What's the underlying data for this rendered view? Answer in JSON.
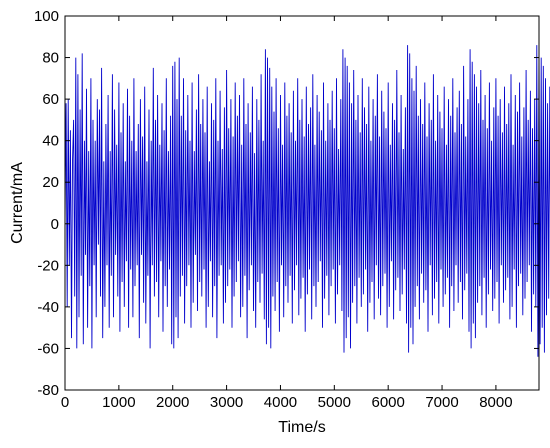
{
  "chart_data": {
    "type": "line",
    "title": "",
    "xlabel": "Time/s",
    "ylabel": "Current/mA",
    "xlim": [
      0,
      8800
    ],
    "ylim": [
      -80,
      100
    ],
    "x_ticks": [
      0,
      1000,
      2000,
      3000,
      4000,
      5000,
      6000,
      7000,
      8000
    ],
    "y_ticks": [
      -80,
      -60,
      -40,
      -20,
      0,
      20,
      40,
      60,
      80,
      100
    ],
    "grid": false,
    "legend": "none",
    "series": [
      {
        "color": "#0000cc",
        "sampling_note": "dense alternating charge/discharge pulse profile; values below are representative samples read at 20 s resolution",
        "x_step": 20,
        "x_start": 0,
        "values": [
          0,
          58,
          -40,
          60,
          -20,
          45,
          -55,
          30,
          50,
          -35,
          80,
          -60,
          72,
          -45,
          55,
          -25,
          82,
          -58,
          40,
          -15,
          65,
          -50,
          35,
          -30,
          70,
          -60,
          50,
          -20,
          40,
          -45,
          60,
          -10,
          55,
          -35,
          75,
          -55,
          30,
          -40,
          48,
          -20,
          62,
          -50,
          35,
          -25,
          72,
          -45,
          55,
          -15,
          38,
          -35,
          68,
          -52,
          44,
          -28,
          58,
          -40,
          30,
          -18,
          65,
          -50,
          52,
          -22,
          40,
          -45,
          70,
          -30,
          35,
          -20,
          48,
          -55,
          60,
          -15,
          42,
          -38,
          66,
          -48,
          30,
          -25,
          55,
          -60,
          40,
          -20,
          75,
          -35,
          50,
          -28,
          62,
          -45,
          38,
          -18,
          58,
          -52,
          45,
          -30,
          70,
          -40,
          35,
          -22,
          52,
          -58,
          76,
          -60,
          78,
          -45,
          60,
          -55,
          80,
          -35,
          52,
          -25,
          70,
          -48,
          45,
          -30,
          62,
          -20,
          40,
          -50,
          68,
          -38,
          35,
          -15,
          55,
          -42,
          72,
          -28,
          48,
          -35,
          60,
          -22,
          44,
          -50,
          66,
          -40,
          30,
          -18,
          58,
          -45,
          50,
          -30,
          70,
          -55,
          40,
          -25,
          64,
          -20,
          36,
          -48,
          56,
          -38,
          74,
          -30,
          46,
          -22,
          60,
          -50,
          42,
          -35,
          68,
          -28,
          52,
          -18,
          62,
          -45,
          38,
          -40,
          70,
          -25,
          48,
          -55,
          58,
          -32,
          44,
          -20,
          66,
          -42,
          34,
          -50,
          60,
          -28,
          50,
          -38,
          72,
          -24,
          40,
          -46,
          84,
          -58,
          80,
          -50,
          75,
          -60,
          66,
          -35,
          54,
          -42,
          70,
          -28,
          46,
          -52,
          62,
          -20,
          38,
          -45,
          68,
          -30,
          52,
          -38,
          58,
          -25,
          44,
          -48,
          64,
          -32,
          40,
          -20,
          70,
          -44,
          50,
          -36,
          60,
          -26,
          42,
          -52,
          66,
          -34,
          48,
          -22,
          56,
          -46,
          72,
          -30,
          38,
          -40,
          62,
          -28,
          54,
          -18,
          45,
          -50,
          68,
          -36,
          40,
          -25,
          58,
          -44,
          50,
          -30,
          64,
          -22,
          46,
          -48,
          70,
          -34,
          36,
          -20,
          60,
          -42,
          84,
          -62,
          80,
          -55,
          76,
          -45,
          68,
          -60,
          58,
          -38,
          74,
          -30,
          50,
          -48,
          62,
          -26,
          44,
          -40,
          70,
          -34,
          56,
          -22,
          48,
          -52,
          66,
          -38,
          40,
          -28,
          60,
          -46,
          52,
          -20,
          72,
          -36,
          42,
          -44,
          64,
          -30,
          54,
          -24,
          46,
          -50,
          68,
          -40,
          38,
          -18,
          58,
          -46,
          50,
          -32,
          74,
          -26,
          44,
          -42,
          62,
          -34,
          36,
          -22,
          56,
          -48,
          86,
          -62,
          82,
          -50,
          70,
          -58,
          64,
          -40,
          76,
          -30,
          52,
          -46,
          60,
          -24,
          48,
          -38,
          68,
          -32,
          42,
          -52,
          58,
          -20,
          50,
          -44,
          72,
          -36,
          40,
          -28,
          62,
          -48,
          54,
          -22,
          46,
          -40,
          66,
          -34,
          38,
          -26,
          60,
          -50,
          52,
          -30,
          70,
          -42,
          44,
          -20,
          56,
          -38,
          64,
          -28,
          48,
          -46,
          76,
          -32,
          42,
          -24,
          60,
          -52,
          84,
          -60,
          78,
          -48,
          72,
          -55,
          66,
          -38,
          58,
          -30,
          74,
          -44,
          50,
          -26,
          62,
          -50,
          46,
          -34,
          68,
          -22,
          40,
          -42,
          56,
          -36,
          70,
          -28,
          52,
          -48,
          60,
          -20,
          44,
          -38,
          66,
          -32,
          48,
          -26,
          58,
          -46,
          72,
          -40,
          38,
          -22,
          62,
          -50,
          54,
          -30,
          68,
          -24,
          42,
          -44,
          56,
          -36,
          74,
          -28,
          50,
          -20,
          64,
          -52,
          46,
          -34,
          60,
          -40,
          86,
          -64,
          84,
          -58,
          80,
          -50,
          76,
          -62,
          70,
          -44,
          58,
          -36,
          66,
          -28,
          52,
          -48,
          62,
          -22,
          46,
          -40,
          72,
          -34,
          40,
          -26,
          56,
          -52,
          68,
          -38,
          50,
          -20,
          60,
          -44,
          44,
          -30,
          70,
          -46,
          54,
          -24,
          48,
          -36,
          64,
          -42,
          38,
          -28,
          58,
          -50,
          72,
          -32,
          46,
          -22,
          62,
          -40,
          52,
          -56,
          66,
          -30,
          44,
          -18,
          60,
          -46,
          30,
          -24,
          40,
          -20,
          0
        ]
      }
    ]
  }
}
